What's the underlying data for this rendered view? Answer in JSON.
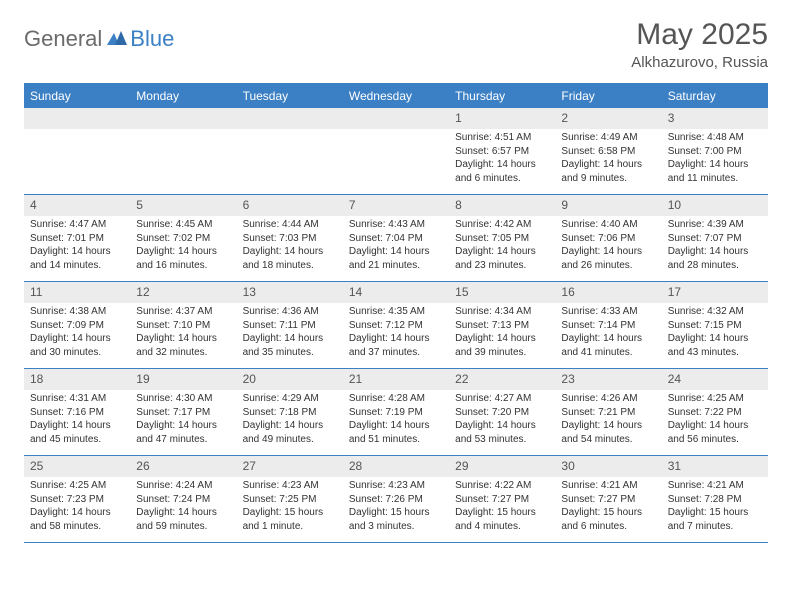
{
  "logo": {
    "text1": "General",
    "text2": "Blue"
  },
  "title": "May 2025",
  "location": "Alkhazurovo, Russia",
  "colors": {
    "accent": "#3b7fc4",
    "header_bg": "#3b7fc4",
    "daynum_bg": "#ececec",
    "text": "#333333",
    "muted": "#555555",
    "logo_gray": "#6b6b6b"
  },
  "weekdays": [
    "Sunday",
    "Monday",
    "Tuesday",
    "Wednesday",
    "Thursday",
    "Friday",
    "Saturday"
  ],
  "weeks": [
    [
      {
        "n": "",
        "sr": "",
        "ss": "",
        "d1": "",
        "d2": ""
      },
      {
        "n": "",
        "sr": "",
        "ss": "",
        "d1": "",
        "d2": ""
      },
      {
        "n": "",
        "sr": "",
        "ss": "",
        "d1": "",
        "d2": ""
      },
      {
        "n": "",
        "sr": "",
        "ss": "",
        "d1": "",
        "d2": ""
      },
      {
        "n": "1",
        "sr": "Sunrise: 4:51 AM",
        "ss": "Sunset: 6:57 PM",
        "d1": "Daylight: 14 hours",
        "d2": "and 6 minutes."
      },
      {
        "n": "2",
        "sr": "Sunrise: 4:49 AM",
        "ss": "Sunset: 6:58 PM",
        "d1": "Daylight: 14 hours",
        "d2": "and 9 minutes."
      },
      {
        "n": "3",
        "sr": "Sunrise: 4:48 AM",
        "ss": "Sunset: 7:00 PM",
        "d1": "Daylight: 14 hours",
        "d2": "and 11 minutes."
      }
    ],
    [
      {
        "n": "4",
        "sr": "Sunrise: 4:47 AM",
        "ss": "Sunset: 7:01 PM",
        "d1": "Daylight: 14 hours",
        "d2": "and 14 minutes."
      },
      {
        "n": "5",
        "sr": "Sunrise: 4:45 AM",
        "ss": "Sunset: 7:02 PM",
        "d1": "Daylight: 14 hours",
        "d2": "and 16 minutes."
      },
      {
        "n": "6",
        "sr": "Sunrise: 4:44 AM",
        "ss": "Sunset: 7:03 PM",
        "d1": "Daylight: 14 hours",
        "d2": "and 18 minutes."
      },
      {
        "n": "7",
        "sr": "Sunrise: 4:43 AM",
        "ss": "Sunset: 7:04 PM",
        "d1": "Daylight: 14 hours",
        "d2": "and 21 minutes."
      },
      {
        "n": "8",
        "sr": "Sunrise: 4:42 AM",
        "ss": "Sunset: 7:05 PM",
        "d1": "Daylight: 14 hours",
        "d2": "and 23 minutes."
      },
      {
        "n": "9",
        "sr": "Sunrise: 4:40 AM",
        "ss": "Sunset: 7:06 PM",
        "d1": "Daylight: 14 hours",
        "d2": "and 26 minutes."
      },
      {
        "n": "10",
        "sr": "Sunrise: 4:39 AM",
        "ss": "Sunset: 7:07 PM",
        "d1": "Daylight: 14 hours",
        "d2": "and 28 minutes."
      }
    ],
    [
      {
        "n": "11",
        "sr": "Sunrise: 4:38 AM",
        "ss": "Sunset: 7:09 PM",
        "d1": "Daylight: 14 hours",
        "d2": "and 30 minutes."
      },
      {
        "n": "12",
        "sr": "Sunrise: 4:37 AM",
        "ss": "Sunset: 7:10 PM",
        "d1": "Daylight: 14 hours",
        "d2": "and 32 minutes."
      },
      {
        "n": "13",
        "sr": "Sunrise: 4:36 AM",
        "ss": "Sunset: 7:11 PM",
        "d1": "Daylight: 14 hours",
        "d2": "and 35 minutes."
      },
      {
        "n": "14",
        "sr": "Sunrise: 4:35 AM",
        "ss": "Sunset: 7:12 PM",
        "d1": "Daylight: 14 hours",
        "d2": "and 37 minutes."
      },
      {
        "n": "15",
        "sr": "Sunrise: 4:34 AM",
        "ss": "Sunset: 7:13 PM",
        "d1": "Daylight: 14 hours",
        "d2": "and 39 minutes."
      },
      {
        "n": "16",
        "sr": "Sunrise: 4:33 AM",
        "ss": "Sunset: 7:14 PM",
        "d1": "Daylight: 14 hours",
        "d2": "and 41 minutes."
      },
      {
        "n": "17",
        "sr": "Sunrise: 4:32 AM",
        "ss": "Sunset: 7:15 PM",
        "d1": "Daylight: 14 hours",
        "d2": "and 43 minutes."
      }
    ],
    [
      {
        "n": "18",
        "sr": "Sunrise: 4:31 AM",
        "ss": "Sunset: 7:16 PM",
        "d1": "Daylight: 14 hours",
        "d2": "and 45 minutes."
      },
      {
        "n": "19",
        "sr": "Sunrise: 4:30 AM",
        "ss": "Sunset: 7:17 PM",
        "d1": "Daylight: 14 hours",
        "d2": "and 47 minutes."
      },
      {
        "n": "20",
        "sr": "Sunrise: 4:29 AM",
        "ss": "Sunset: 7:18 PM",
        "d1": "Daylight: 14 hours",
        "d2": "and 49 minutes."
      },
      {
        "n": "21",
        "sr": "Sunrise: 4:28 AM",
        "ss": "Sunset: 7:19 PM",
        "d1": "Daylight: 14 hours",
        "d2": "and 51 minutes."
      },
      {
        "n": "22",
        "sr": "Sunrise: 4:27 AM",
        "ss": "Sunset: 7:20 PM",
        "d1": "Daylight: 14 hours",
        "d2": "and 53 minutes."
      },
      {
        "n": "23",
        "sr": "Sunrise: 4:26 AM",
        "ss": "Sunset: 7:21 PM",
        "d1": "Daylight: 14 hours",
        "d2": "and 54 minutes."
      },
      {
        "n": "24",
        "sr": "Sunrise: 4:25 AM",
        "ss": "Sunset: 7:22 PM",
        "d1": "Daylight: 14 hours",
        "d2": "and 56 minutes."
      }
    ],
    [
      {
        "n": "25",
        "sr": "Sunrise: 4:25 AM",
        "ss": "Sunset: 7:23 PM",
        "d1": "Daylight: 14 hours",
        "d2": "and 58 minutes."
      },
      {
        "n": "26",
        "sr": "Sunrise: 4:24 AM",
        "ss": "Sunset: 7:24 PM",
        "d1": "Daylight: 14 hours",
        "d2": "and 59 minutes."
      },
      {
        "n": "27",
        "sr": "Sunrise: 4:23 AM",
        "ss": "Sunset: 7:25 PM",
        "d1": "Daylight: 15 hours",
        "d2": "and 1 minute."
      },
      {
        "n": "28",
        "sr": "Sunrise: 4:23 AM",
        "ss": "Sunset: 7:26 PM",
        "d1": "Daylight: 15 hours",
        "d2": "and 3 minutes."
      },
      {
        "n": "29",
        "sr": "Sunrise: 4:22 AM",
        "ss": "Sunset: 7:27 PM",
        "d1": "Daylight: 15 hours",
        "d2": "and 4 minutes."
      },
      {
        "n": "30",
        "sr": "Sunrise: 4:21 AM",
        "ss": "Sunset: 7:27 PM",
        "d1": "Daylight: 15 hours",
        "d2": "and 6 minutes."
      },
      {
        "n": "31",
        "sr": "Sunrise: 4:21 AM",
        "ss": "Sunset: 7:28 PM",
        "d1": "Daylight: 15 hours",
        "d2": "and 7 minutes."
      }
    ]
  ]
}
